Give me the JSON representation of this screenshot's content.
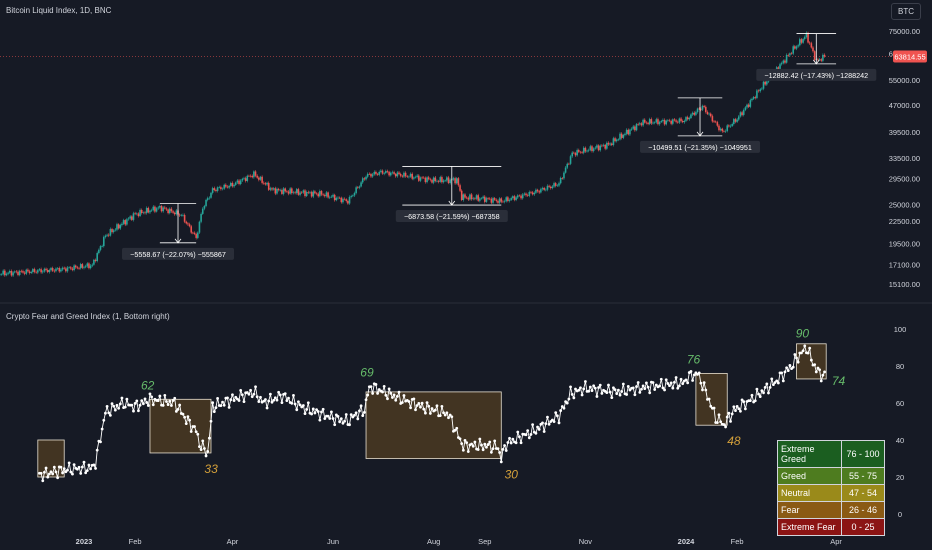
{
  "header": {
    "price_title": "Bitcoin Liquid Index, 1D, BNC",
    "indicator_title": "Crypto Fear and Greed Index (1, Bottom right)",
    "symbol_badge": "BTC"
  },
  "colors": {
    "background": "#161a25",
    "up": "#26a69a",
    "down": "#ef5350",
    "price_line": "#ef5350",
    "fg_line": "#ffffff",
    "box_fill": "#4a3a22",
    "label_green": "#66bb6a",
    "label_orange": "#d4a03a"
  },
  "chart_data": [
    {
      "type": "candlestick",
      "title": "Bitcoin Liquid Index, 1D, BNC",
      "y_scale": "log",
      "y_ticks": [
        15100,
        17100,
        19500,
        22500,
        25000,
        29500,
        33500,
        39500,
        47000,
        55000,
        65000,
        75000
      ],
      "y_tick_labels": [
        "15100.00",
        "17100.00",
        "19500.00",
        "22500.00",
        "25000.00",
        "29500.00",
        "33500.00",
        "39500.00",
        "47000.00",
        "55000.00",
        "65000.00",
        "75000.00"
      ],
      "last_price": 63814.55,
      "last_price_label": "63814.55",
      "path_dates": [
        "2022-11-01",
        "2022-12-20",
        "2023-01-06",
        "2023-01-14",
        "2023-02-01",
        "2023-02-16",
        "2023-03-01",
        "2023-03-10",
        "2023-03-14",
        "2023-03-20",
        "2023-04-01",
        "2023-04-14",
        "2023-04-25",
        "2023-05-10",
        "2023-05-25",
        "2023-06-10",
        "2023-06-21",
        "2023-07-01",
        "2023-07-15",
        "2023-08-01",
        "2023-08-15",
        "2023-08-18",
        "2023-09-01",
        "2023-09-11",
        "2023-10-01",
        "2023-10-16",
        "2023-10-24",
        "2023-11-15",
        "2023-12-05",
        "2023-12-31",
        "2024-01-11",
        "2024-01-23",
        "2024-02-01",
        "2024-02-15",
        "2024-02-28",
        "2024-03-05",
        "2024-03-14",
        "2024-03-20",
        "2024-03-25"
      ],
      "path_values": [
        16000,
        16600,
        17000,
        20500,
        23500,
        24500,
        23400,
        20200,
        24500,
        27400,
        28300,
        30300,
        27400,
        27000,
        26700,
        25500,
        30000,
        30700,
        30000,
        29100,
        29200,
        26200,
        25900,
        25500,
        27000,
        28500,
        34500,
        36500,
        42000,
        42500,
        46500,
        39500,
        43000,
        52000,
        61000,
        66000,
        73000,
        62000,
        63800
      ],
      "measurements": [
        {
          "label": "−5558.67 (−22.07%) −555867",
          "start_date": "2023-02-16",
          "end_date": "2023-03-10",
          "high": 25150,
          "low": 19600
        },
        {
          "label": "−6873.58 (−21.59%) −687358",
          "start_date": "2023-07-13",
          "end_date": "2023-09-11",
          "high": 31800,
          "low": 24900
        },
        {
          "label": "−10499.51 (−21.35%) −1049951",
          "start_date": "2023-12-27",
          "end_date": "2024-01-23",
          "high": 49100,
          "low": 38600
        },
        {
          "label": "−12882.42 (−17.43%) −1288242",
          "start_date": "2024-03-08",
          "end_date": "2024-04-01",
          "high": 73800,
          "low": 60900
        }
      ]
    },
    {
      "type": "line",
      "title": "Crypto Fear and Greed Index (1, Bottom right)",
      "ylim": [
        0,
        100
      ],
      "y_ticks": [
        0,
        20,
        40,
        60,
        80,
        100
      ],
      "path_dates": [
        "2022-12-05",
        "2022-12-20",
        "2023-01-06",
        "2023-01-08",
        "2023-01-14",
        "2023-01-25",
        "2023-02-01",
        "2023-02-10",
        "2023-02-25",
        "2023-03-05",
        "2023-03-10",
        "2023-03-12",
        "2023-03-17",
        "2023-03-20",
        "2023-04-01",
        "2023-04-14",
        "2023-04-20",
        "2023-05-01",
        "2023-05-15",
        "2023-06-01",
        "2023-06-10",
        "2023-06-15",
        "2023-06-20",
        "2023-06-22",
        "2023-06-24",
        "2023-07-10",
        "2023-07-25",
        "2023-08-10",
        "2023-08-17",
        "2023-08-19",
        "2023-09-01",
        "2023-09-09",
        "2023-09-11",
        "2023-09-14",
        "2023-10-01",
        "2023-10-16",
        "2023-10-23",
        "2023-11-01",
        "2023-11-20",
        "2023-12-10",
        "2023-12-31",
        "2024-01-02",
        "2024-01-08",
        "2024-01-14",
        "2024-01-19",
        "2024-01-22",
        "2024-01-24",
        "2024-01-30",
        "2024-02-10",
        "2024-02-25",
        "2024-03-05",
        "2024-03-08",
        "2024-03-14",
        "2024-03-20",
        "2024-03-25"
      ],
      "path_values": [
        21,
        24,
        25,
        28,
        55,
        60,
        58,
        62,
        60,
        50,
        45,
        38,
        33,
        58,
        62,
        66,
        60,
        64,
        57,
        52,
        50,
        54,
        56,
        65,
        69,
        63,
        58,
        54,
        40,
        37,
        37,
        36,
        30,
        38,
        45,
        53,
        65,
        68,
        66,
        69,
        71,
        74,
        76,
        64,
        52,
        50,
        48,
        56,
        62,
        72,
        80,
        84,
        90,
        78,
        74
      ],
      "annotations": [
        {
          "text": "62",
          "date": "2023-02-11",
          "value": 62,
          "kind": "peak"
        },
        {
          "text": "33",
          "date": "2023-03-13",
          "value": 33,
          "kind": "trough"
        },
        {
          "text": "69",
          "date": "2023-06-24",
          "value": 69,
          "kind": "peak"
        },
        {
          "text": "30",
          "date": "2023-09-11",
          "value": 30,
          "kind": "trough"
        },
        {
          "text": "76",
          "date": "2024-01-08",
          "value": 76,
          "kind": "peak"
        },
        {
          "text": "48",
          "date": "2024-01-24",
          "value": 48,
          "kind": "trough"
        },
        {
          "text": "90",
          "date": "2024-03-14",
          "value": 90,
          "kind": "peak"
        },
        {
          "text": "74",
          "date": "2024-03-25",
          "value": 74,
          "kind": "last"
        }
      ],
      "zones": [
        {
          "start_date": "2022-12-04",
          "end_date": "2022-12-20",
          "top": 40,
          "bottom": 20
        },
        {
          "start_date": "2023-02-10",
          "end_date": "2023-03-19",
          "top": 62,
          "bottom": 33
        },
        {
          "start_date": "2023-06-21",
          "end_date": "2023-09-11",
          "top": 66,
          "bottom": 30
        },
        {
          "start_date": "2024-01-07",
          "end_date": "2024-01-26",
          "top": 76,
          "bottom": 48
        },
        {
          "start_date": "2024-03-08",
          "end_date": "2024-03-26",
          "top": 92,
          "bottom": 73
        }
      ]
    }
  ],
  "x_axis": {
    "ticks": [
      {
        "label": "2023",
        "date": "2023-01-01"
      },
      {
        "label": "Feb",
        "date": "2023-02-01"
      },
      {
        "label": "Apr",
        "date": "2023-04-01"
      },
      {
        "label": "Jun",
        "date": "2023-06-01"
      },
      {
        "label": "Aug",
        "date": "2023-08-01"
      },
      {
        "label": "Sep",
        "date": "2023-09-01"
      },
      {
        "label": "Nov",
        "date": "2023-11-01"
      },
      {
        "label": "2024",
        "date": "2024-01-01"
      },
      {
        "label": "Feb",
        "date": "2024-02-01"
      },
      {
        "label": "Apr",
        "date": "2024-04-01"
      }
    ]
  },
  "legend": {
    "rows": [
      {
        "label": "Extreme Greed",
        "range": "76 - 100",
        "color": "#1b5e20"
      },
      {
        "label": "Greed",
        "range": "55 - 75",
        "color": "#4e7c1f"
      },
      {
        "label": "Neutral",
        "range": "47 - 54",
        "color": "#9a8a1a"
      },
      {
        "label": "Fear",
        "range": "26 - 46",
        "color": "#8a5a14"
      },
      {
        "label": "Extreme Fear",
        "range": "0 - 25",
        "color": "#8b1414"
      }
    ]
  }
}
